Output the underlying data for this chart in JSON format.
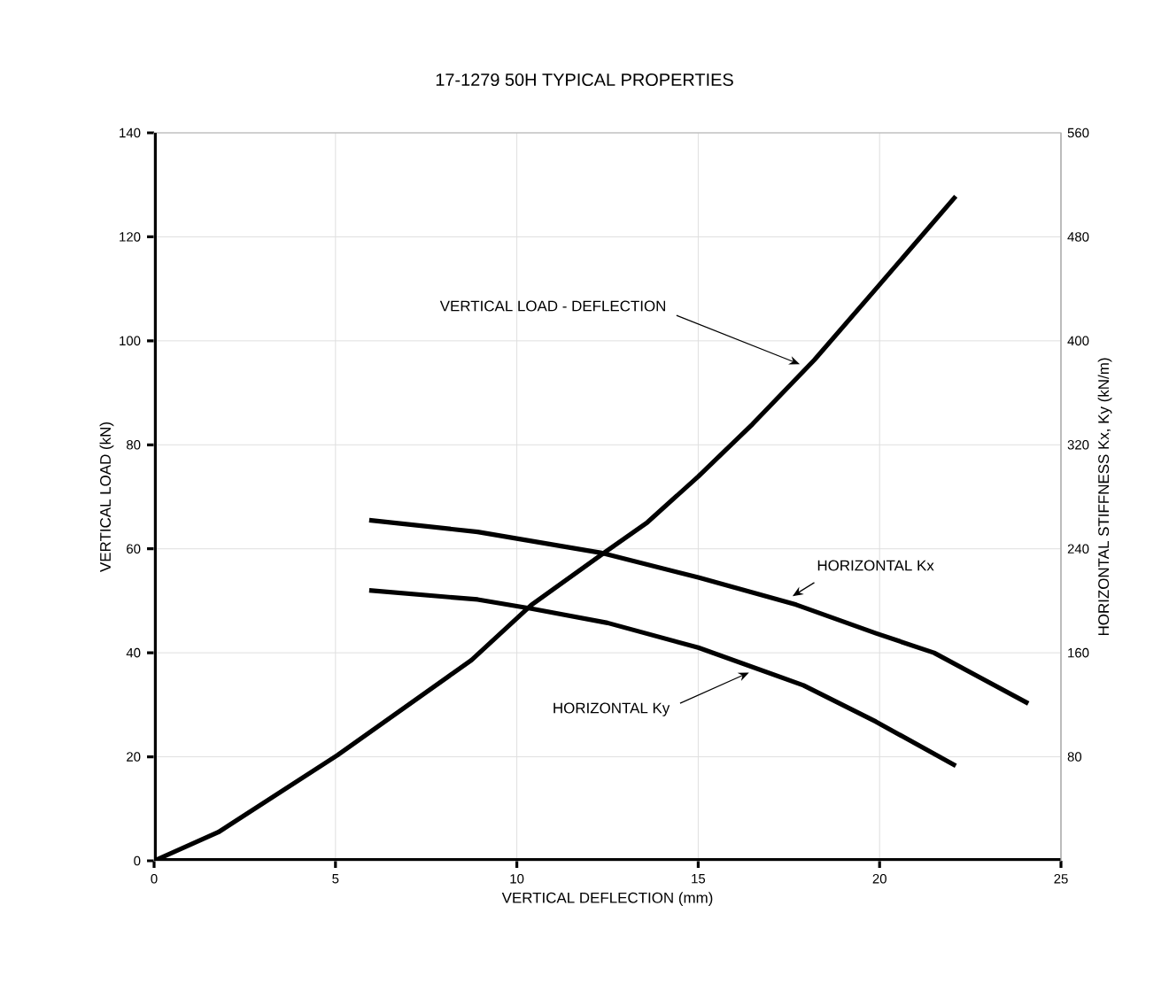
{
  "chart_data": {
    "type": "line",
    "title": "17-1279 50H  TYPICAL PROPERTIES",
    "xlabel": "VERTICAL DEFLECTION  (mm)",
    "ylabel": "VERTICAL LOAD (kN)",
    "y2label": "HORIZONTAL STIFFNESS Kx, Ky (kN/m)",
    "xlim": [
      0,
      25
    ],
    "xticks": [
      0,
      5,
      10,
      15,
      20,
      25
    ],
    "ylim": [
      0,
      140
    ],
    "yticks": [
      0,
      20,
      40,
      60,
      80,
      100,
      120,
      140
    ],
    "y2lim": [
      0,
      560
    ],
    "y2ticks": [
      80,
      160,
      240,
      320,
      400,
      480,
      560
    ],
    "grid": true,
    "marker": "none",
    "line_style": "solid",
    "series": [
      {
        "color": "#000000",
        "x": [
          0,
          1.77,
          5.05,
          8.75,
          10.4,
          12.4,
          13.6,
          15.0,
          16.5,
          18.2,
          19.9,
          22.1
        ],
        "values": [
          0,
          5.5,
          20.3,
          38.6,
          49.2,
          59.2,
          65.1,
          73.9,
          84,
          96.3,
          110,
          127.8
        ]
      },
      {
        "color": "#000000",
        "axis": "y2",
        "x": [
          5.93,
          8.92,
          12.3,
          15.0,
          17.7,
          19.9,
          21.5,
          24.1
        ],
        "values": [
          262,
          253,
          237,
          218,
          197,
          175,
          160,
          121
        ]
      },
      {
        "color": "#000000",
        "axis": "y2",
        "x": [
          5.93,
          8.92,
          10.4,
          12.5,
          15.0,
          17.9,
          19.9,
          22.1
        ],
        "values": [
          208,
          201,
          194,
          183,
          164,
          135,
          107,
          73
        ]
      }
    ],
    "annotations": [
      {
        "text": "VERTICAL LOAD - DEFLECTION",
        "x": 17.8,
        "y": 95.5
      },
      {
        "text": "HORIZONTAL  Kx",
        "x": 17.6,
        "y": 50.9
      },
      {
        "text": "HORIZONTAL  Ky",
        "x": 16.4,
        "y": 36.2
      }
    ]
  }
}
